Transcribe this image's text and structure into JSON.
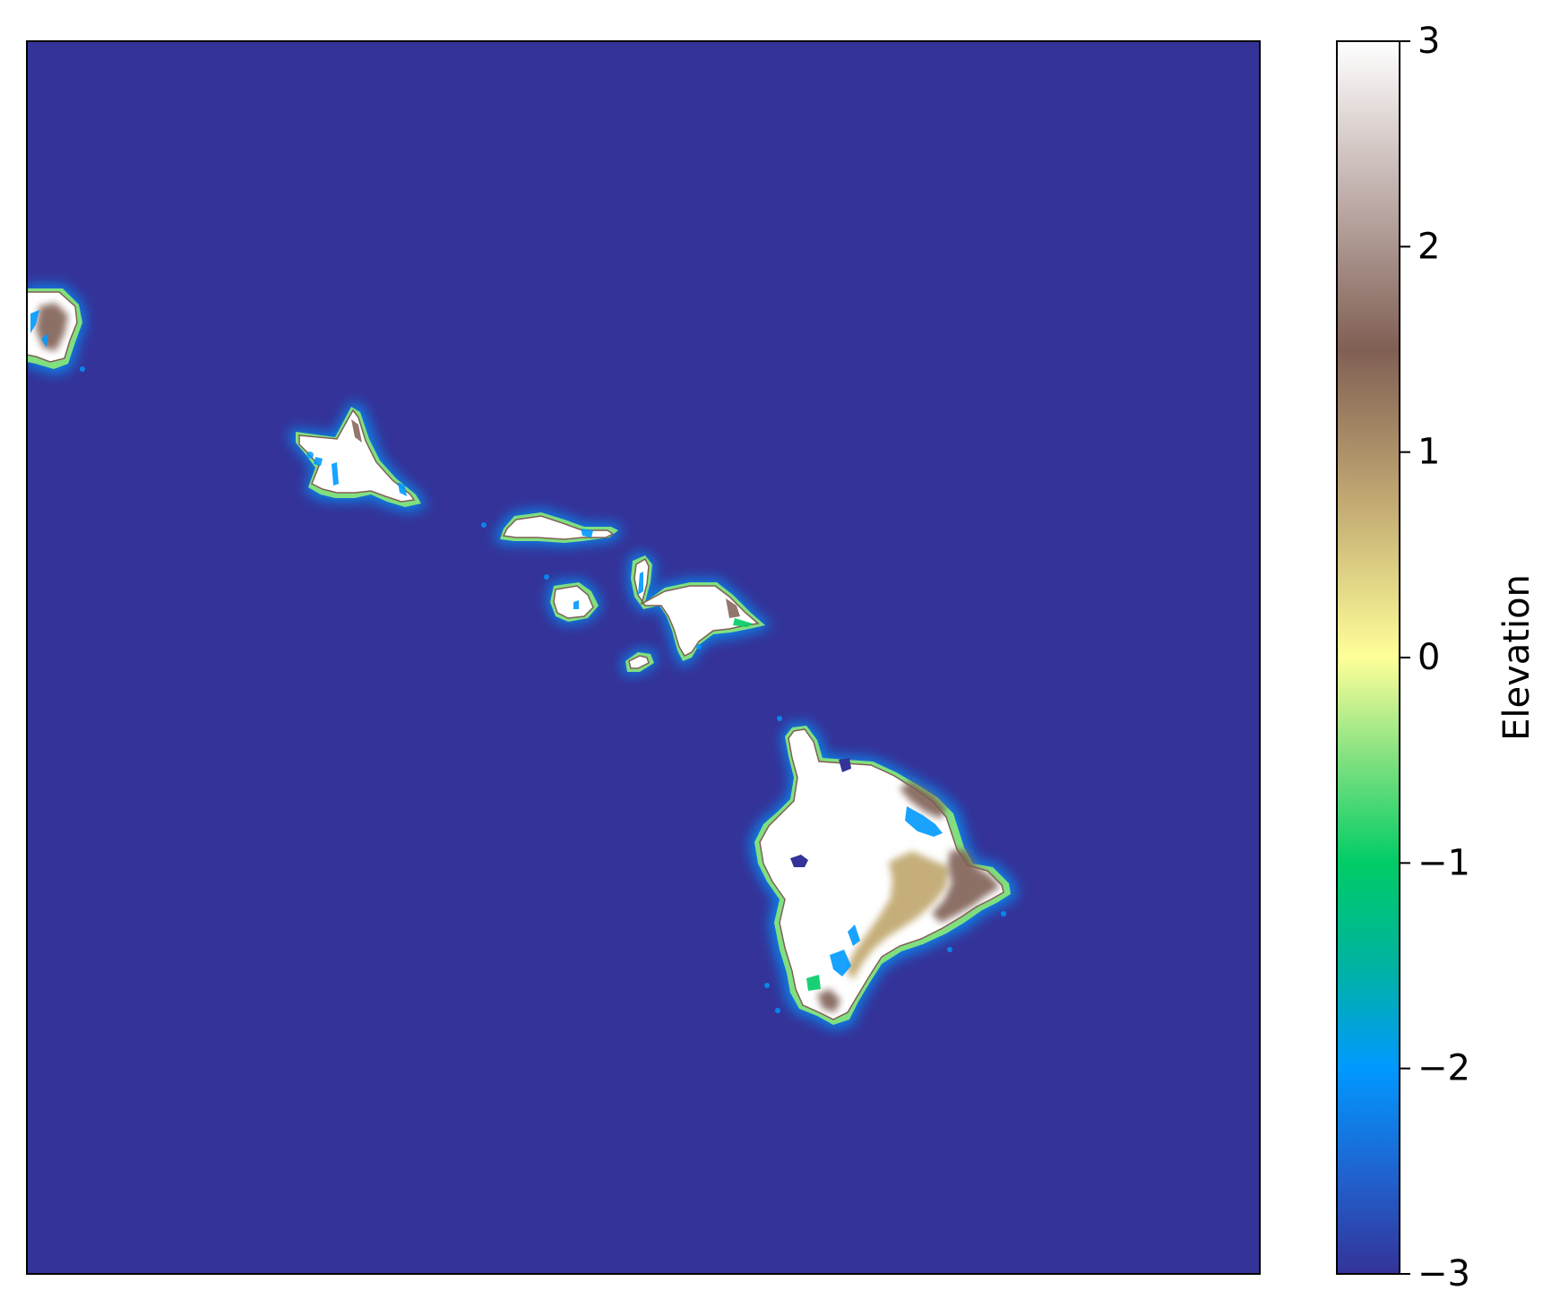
{
  "chart_data": {
    "type": "heatmap",
    "subject": "Hawaiian Islands elevation raster",
    "colormap": "terrain",
    "colormap_stops": [
      {
        "value": -3,
        "color": "#333399"
      },
      {
        "value": -2.5,
        "color": "#1f64d0"
      },
      {
        "value": -2,
        "color": "#0099ff"
      },
      {
        "value": -1.5,
        "color": "#00b3a0"
      },
      {
        "value": -1,
        "color": "#00cc66"
      },
      {
        "value": -0.5,
        "color": "#80e080"
      },
      {
        "value": 0,
        "color": "#ffff99"
      },
      {
        "value": 0.75,
        "color": "#c2aa73"
      },
      {
        "value": 1.5,
        "color": "#805f54"
      },
      {
        "value": 2.25,
        "color": "#c0afab"
      },
      {
        "value": 3,
        "color": "#ffffff"
      }
    ],
    "colorbar": {
      "label": "Elevation",
      "range": [
        -3,
        3
      ],
      "ticks": [
        3,
        2,
        1,
        0,
        -1,
        -2,
        -3
      ],
      "tick_labels": [
        "3",
        "2",
        "1",
        "0",
        "−1",
        "−2",
        "−3"
      ]
    },
    "background_value": -3,
    "islands": [
      "Niihau/Kauai (partial)",
      "Oahu",
      "Molokai",
      "Lanai",
      "Maui",
      "Kahoolawe",
      "Hawaii"
    ],
    "x_axis_visible": false,
    "y_axis_visible": false
  },
  "colors": {
    "ocean": "#333399",
    "land_high": "#ffffff",
    "frame": "#000000"
  }
}
